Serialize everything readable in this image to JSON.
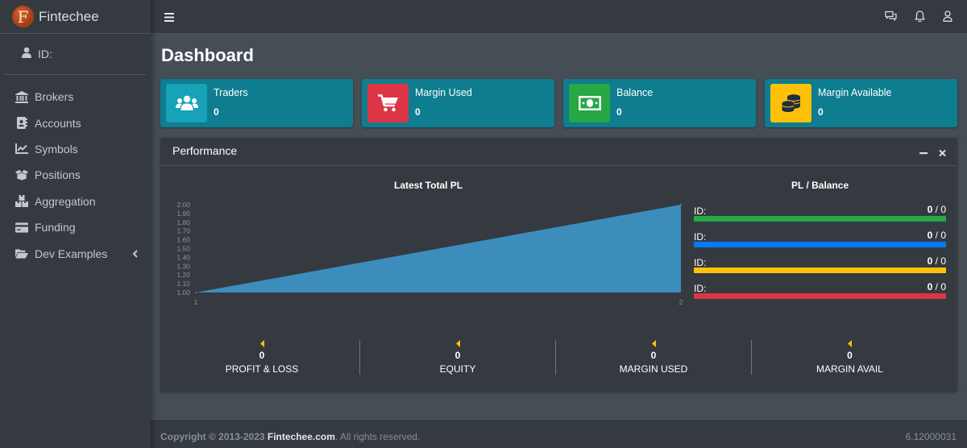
{
  "brand": {
    "logo_letter": "F",
    "name": "Fintechee"
  },
  "user": {
    "label": "ID:",
    "icon": "user-icon"
  },
  "sidebar": {
    "items": [
      {
        "label": "Brokers",
        "icon": "bank-icon"
      },
      {
        "label": "Accounts",
        "icon": "address-book-icon"
      },
      {
        "label": "Symbols",
        "icon": "line-chart-icon"
      },
      {
        "label": "Positions",
        "icon": "box-open-icon"
      },
      {
        "label": "Aggregation",
        "icon": "boxes-icon"
      },
      {
        "label": "Funding",
        "icon": "credit-card-icon"
      },
      {
        "label": "Dev Examples",
        "icon": "folder-open-icon"
      }
    ]
  },
  "topbar": {
    "icons": [
      "hamburger-icon",
      "chat-icon",
      "bell-icon",
      "user-icon"
    ]
  },
  "page": {
    "title": "Dashboard"
  },
  "info_boxes": [
    {
      "title": "Traders",
      "value": "0",
      "icon": "users-icon",
      "color": "#17a2b8"
    },
    {
      "title": "Margin Used",
      "value": "0",
      "icon": "cart-icon",
      "color": "#dc3545"
    },
    {
      "title": "Balance",
      "value": "0",
      "icon": "money-bill-icon",
      "color": "#28a745"
    },
    {
      "title": "Margin Available",
      "value": "0",
      "icon": "coins-icon",
      "color": "#ffc107"
    }
  ],
  "performance": {
    "title": "Performance",
    "left_title": "Latest Total PL",
    "right_title": "PL / Balance",
    "progress": [
      {
        "label": "ID:",
        "value": "0",
        "sep": " / ",
        "total": "0",
        "fraction": 1.0,
        "color": "#28a745"
      },
      {
        "label": "ID:",
        "value": "0",
        "sep": " / ",
        "total": "0",
        "fraction": 1.0,
        "color": "#007bff"
      },
      {
        "label": "ID:",
        "value": "0",
        "sep": " / ",
        "total": "0",
        "fraction": 1.0,
        "color": "#ffc107"
      },
      {
        "label": "ID:",
        "value": "0",
        "sep": " / ",
        "total": "0",
        "fraction": 1.0,
        "color": "#dc3545"
      }
    ],
    "descriptions": [
      {
        "value": "0",
        "label": "PROFIT & LOSS"
      },
      {
        "value": "0",
        "label": "EQUITY"
      },
      {
        "value": "0",
        "label": "MARGIN USED"
      },
      {
        "value": "0",
        "label": "MARGIN AVAIL"
      }
    ]
  },
  "chart_data": {
    "type": "area",
    "x": [
      "1",
      "2"
    ],
    "series": [
      {
        "values": [
          1.0,
          2.0
        ],
        "color": "#3c8dbc"
      }
    ],
    "yticks": [
      "1.00",
      "1.10",
      "1.20",
      "1.30",
      "1.40",
      "1.50",
      "1.60",
      "1.70",
      "1.80",
      "1.90",
      "2.00"
    ],
    "ylim": [
      1.0,
      2.0
    ],
    "title": "Latest Total PL"
  },
  "footer": {
    "copyright_prefix": "Copyright © 2013-2023 ",
    "brand_link": "Fintechee.com",
    "suffix": ". All rights reserved.",
    "version": "6.12000031"
  }
}
